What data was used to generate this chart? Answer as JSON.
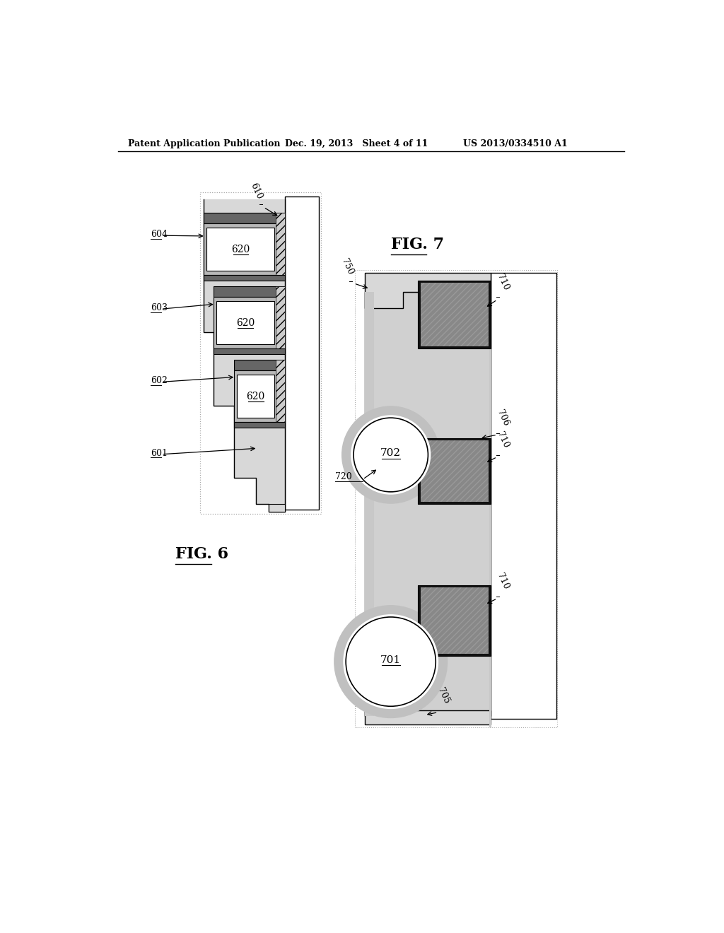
{
  "bg_color": "#ffffff",
  "header_text": "Patent Application Publication",
  "header_date": "Dec. 19, 2013   Sheet 4 of 11",
  "header_patent": "US 2013/0334510 A1",
  "fig6_label": "FIG. 6",
  "fig7_label": "FIG. 7",
  "light_gray": "#d0d0d0",
  "medium_gray": "#a0a0a0",
  "dark_gray": "#707070",
  "black": "#000000",
  "white": "#ffffff",
  "hatch_color": "#b0b0b0",
  "dark_block": "#1a1a1a"
}
